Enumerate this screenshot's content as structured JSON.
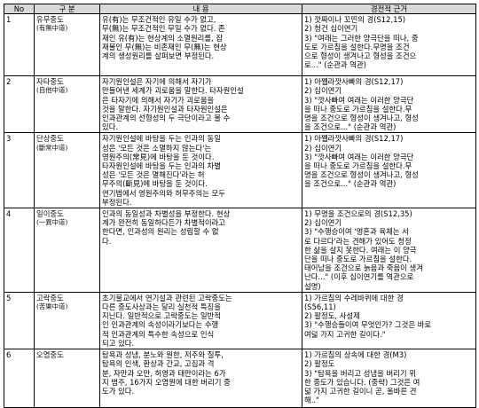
{
  "header": {
    "no": "No",
    "name": "구 분",
    "content": "내 용",
    "source": "경전적 근거"
  },
  "rows": [
    {
      "no": "1",
      "name": "유무중도",
      "sub": "(有無中道)",
      "content": [
        "유(有)는 무조건적인 유일 수가 없고,",
        "무(無)는 무조건적인 무일 수가 없다. 존",
        "재인 유(有)는 현상계의 소멸원리를, 잡",
        "재물인 무(無)는 비존재인 무(無)는 현상",
        "계의 생성원리를 살펴보면 부정된다."
      ],
      "source": [
        "1) 깟짜이나 꼬띤의 경(S12,15)",
        "2) 청건 십이연기",
        "3) \"여래는 그러한 양극단을 떠나, 중",
        "도로 가르침을 설한다.무명을 조건",
        "으로 형성이 생겨나고 형성을 조건으",
        "로...\" (순관과 역관)"
      ]
    },
    {
      "no": "2",
      "name": "자타중도",
      "sub": "(自他中道)",
      "content": [
        "자기원인설은 자기에 의해서 자기가",
        "만들어낸 세계가 괴로움을 말한다. 타자원인설",
        "은 타자기에 의해서 자기가 괴로움을",
        "것을 말한다. 자기원인설과 타자원인설은",
        "인과관계의 선형성의 두 극단이라고 볼 수",
        "있다."
      ],
      "source": [
        "1) 아쩰라깟사빠의 경(S12,17)",
        "2) 십이연기",
        "3) \"깟사빠여 여래는 이러한 양극단",
        "을 떠나 중도로 가르침을 설한다.무",
        "명을 조건으로 형성이 생겨나고, 형성",
        "을 조건으로...\" (순관과 역관)"
      ]
    },
    {
      "no": "3",
      "name": "단상중도",
      "sub": "(斷常中道)",
      "content": [
        "자기원인설에 바탕을 두는 인과의 동일",
        "성은 '모든 것은 소멸하지 않는다'는",
        "영원주의(常見)에 바탕을 둔 것이다.",
        "타자원인설에 바탕을 두는 인과의 차별",
        "성은 '모든 것은 멸해진다'라는 허",
        "무주의(斷見)에 바탕을 둔 것이다.",
        "연기법에서 영원주의와 허무주의는 모두",
        "부정된다."
      ],
      "source": [
        "1) 아쩰라깟사빠의 경(S12,17)",
        "2) 십이연기",
        "3) \"깟사빠여 여래는 이러한 양극단",
        "을 떠나 중도로 가르침을 설한다.무",
        "명을 조건으로 형성이 생겨나고, 형성",
        "을 조건으로...\" (순관과 역관)"
      ]
    },
    {
      "no": "4",
      "name": "일이중도",
      "sub": "(一異中道)",
      "content": [
        "인과의 동일성과 차별성을 부정한다. 현상",
        "계가 완전히 동일하다든가 차별적이라고",
        "한다면, 인과성의 원리는 성립할 수 없",
        "다."
      ],
      "source": [
        "1) 무명을 조건으로의 경(S12,35)",
        "2) 십이연기",
        "3) \"수행승이여 '영혼과 육체는 서",
        "로 다르다'라는 견해가 있어도 청정",
        "한 삶을 살지 못한다. 여래는 이 양극",
        "단을 떠나 중도로 가르침을 설한다.",
        "태어남을 조건으로 늙음과 죽음이 생겨",
        "난다...\" (이후 십이연기를 역관으로",
        "설명)"
      ]
    },
    {
      "no": "5",
      "name": "고락중도",
      "sub": "(苦樂中道)",
      "content": [
        "초기불교에서 연기설과 관련된 고락중도는",
        "다른 중도사상과는 달리 실천적 특징을",
        "지닌다. 일반적으로 고락중도는 일반적",
        "인 인과관계의 속성이라기보다는 수행",
        "적 인과관계의 특수한 속성으로 인식",
        "되고 있다."
      ],
      "source": [
        "1) 가르침의 수레바퀴에 대한 경",
        "(S56,11)",
        "2) 팔정도, 사성제",
        "3) \"수행승들이여 무엇인가? 그것은 바로",
        "여덟 가지 고귀한 길이다.\""
      ]
    },
    {
      "no": "6",
      "name": "오염중도",
      "sub": "",
      "content": [
        "탐욕과 성냄, 분노와 원한, 저주와 질투,",
        "탐욕의 인색, 환상과 간교, 고집과 격",
        "분, 자만과 오만, 허영과 태만이라는 6가",
        "지 범주, 16가지 오염원에 대한 버리기 중",
        "도가 있다."
      ],
      "source": [
        "1) 가르침의 상속에 대한 경(M3)",
        "2) 팔정도",
        "3) \"탐욕을 버리고 성냄을 버리기 위",
        "한 중도가 있습니다. (중략) 그것은 여",
        "덟 가지 고귀한 길이니 곧, 올바른 견",
        "해..\""
      ]
    }
  ]
}
